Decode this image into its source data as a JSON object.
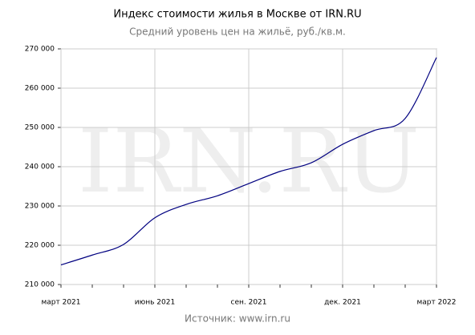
{
  "chart_data": {
    "type": "line",
    "title": "Индекс стоимости жилья в Москве от IRN.RU",
    "subtitle": "Средний уровень цен на жильё, руб./кв.м.",
    "source": "Источник: www.irn.ru",
    "watermark": "IRN.RU",
    "x": [
      "2021-03",
      "2021-04",
      "2021-05",
      "2021-06",
      "2021-07",
      "2021-08",
      "2021-09",
      "2021-10",
      "2021-11",
      "2021-12",
      "2022-01",
      "2022-02",
      "2022-03"
    ],
    "series": [
      {
        "color": "#000080",
        "values": [
          215000,
          217500,
          220200,
          227000,
          230400,
          232600,
          235700,
          238800,
          241000,
          245700,
          249200,
          252300,
          267800
        ]
      }
    ],
    "xlim": [
      "2021-03",
      "2022-03"
    ],
    "xticks": [
      {
        "value": "2021-03",
        "label": "март 2021"
      },
      {
        "value": "2021-06",
        "label": "июнь 2021"
      },
      {
        "value": "2021-09",
        "label": "сен. 2021"
      },
      {
        "value": "2021-12",
        "label": "дек. 2021"
      },
      {
        "value": "2022-03",
        "label": "март 2022"
      }
    ],
    "ylim": [
      210000,
      270000
    ],
    "yticks": [
      {
        "value": 210000,
        "label": "210 000"
      },
      {
        "value": 220000,
        "label": "220 000"
      },
      {
        "value": 230000,
        "label": "230 000"
      },
      {
        "value": 240000,
        "label": "240 000"
      },
      {
        "value": 250000,
        "label": "250 000"
      },
      {
        "value": 260000,
        "label": "260 000"
      },
      {
        "value": 270000,
        "label": "270 000"
      }
    ],
    "grid": true
  }
}
